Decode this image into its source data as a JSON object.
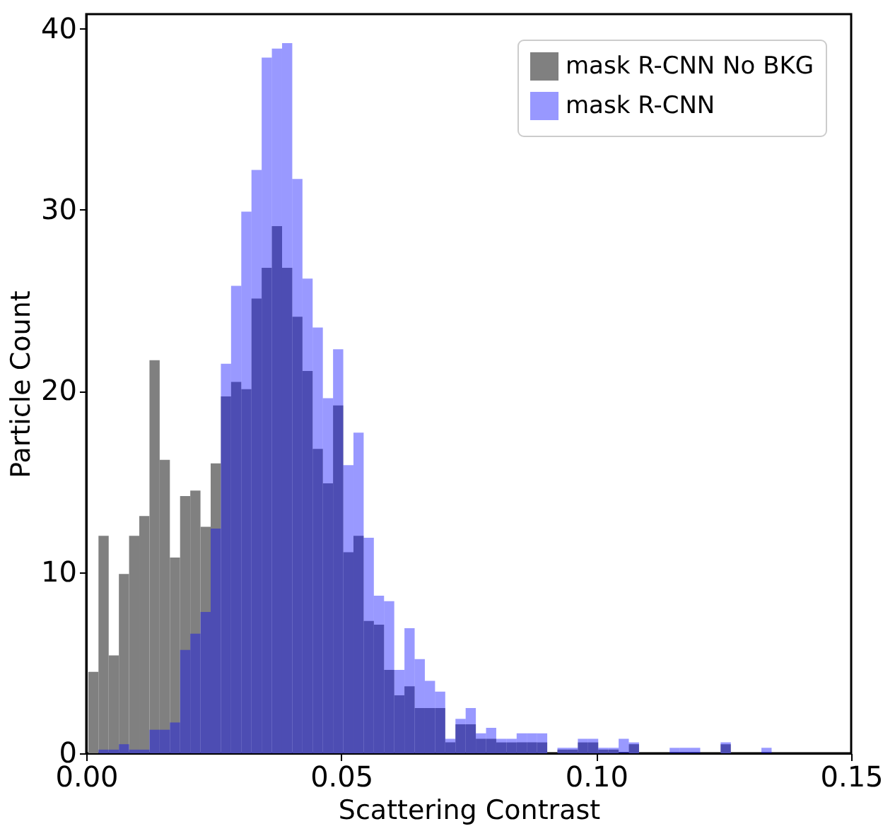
{
  "chart_data": {
    "type": "histogram",
    "xlabel": "Scattering Contrast",
    "ylabel": "Particle Count",
    "bins": [
      0.0004,
      0.0024,
      0.0044,
      0.0064,
      0.0084,
      0.0104,
      0.0124,
      0.0144,
      0.0164,
      0.0184,
      0.0204,
      0.0224,
      0.0244,
      0.0264,
      0.0284,
      0.0304,
      0.0324,
      0.0344,
      0.0364,
      0.0384,
      0.0404,
      0.0424,
      0.0444,
      0.0464,
      0.0484,
      0.0504,
      0.0524,
      0.0544,
      0.0564,
      0.0584,
      0.0604,
      0.0624,
      0.0644,
      0.0664,
      0.0684,
      0.0704,
      0.0724,
      0.0744,
      0.0764,
      0.0784,
      0.0804,
      0.0824,
      0.0844,
      0.0864,
      0.0884,
      0.0904,
      0.0924,
      0.0944,
      0.0964,
      0.0984,
      0.1004,
      0.1024,
      0.1044,
      0.1064,
      0.1084,
      0.1104,
      0.1124,
      0.1144,
      0.1164,
      0.1184,
      0.1204,
      0.1224,
      0.1244,
      0.1264,
      0.1284,
      0.1304,
      0.1324,
      0.1344
    ],
    "series": [
      {
        "name": "mask R-CNN No BKG",
        "color": "#808080",
        "values": [
          4.5,
          12.0,
          5.4,
          9.9,
          12.0,
          13.1,
          21.7,
          16.2,
          10.8,
          14.2,
          14.5,
          12.5,
          16.0,
          19.7,
          20.5,
          20.1,
          25.1,
          26.8,
          29.1,
          26.8,
          24.1,
          21.1,
          16.8,
          14.9,
          19.2,
          11.1,
          12.0,
          7.3,
          7.1,
          4.6,
          3.2,
          3.7,
          2.5,
          2.5,
          2.5,
          0.6,
          1.6,
          1.6,
          0.8,
          0.8,
          0.6,
          0.6,
          0.6,
          0.6,
          0.6,
          0,
          0.2,
          0.2,
          0.6,
          0.6,
          0.2,
          0.2,
          0,
          0.5,
          0,
          0,
          0,
          0,
          0,
          0,
          0,
          0,
          0.5,
          0,
          0,
          0,
          0
        ]
      },
      {
        "name": "mask R-CNN",
        "color": "#0000ff",
        "values": [
          0,
          0.2,
          0.2,
          0.5,
          0.2,
          0.2,
          1.3,
          1.3,
          1.7,
          5.7,
          6.6,
          7.8,
          12.4,
          21.5,
          25.8,
          29.9,
          32.2,
          38.4,
          38.9,
          39.2,
          31.7,
          26.2,
          23.5,
          19.6,
          22.3,
          15.9,
          17.7,
          11.9,
          8.7,
          8.4,
          4.6,
          6.9,
          5.2,
          4.0,
          3.4,
          0.8,
          1.9,
          2.5,
          1.1,
          1.4,
          0.8,
          0.8,
          1.1,
          1.1,
          1.1,
          0,
          0.3,
          0.3,
          0.8,
          0.8,
          0.3,
          0.3,
          0.8,
          0.6,
          0,
          0,
          0,
          0.3,
          0.3,
          0.3,
          0,
          0,
          0.6,
          0,
          0,
          0,
          0.3
        ]
      }
    ],
    "xlim": [
      0,
      0.15
    ],
    "xticks": [
      {
        "value": 0,
        "label": "0.00"
      },
      {
        "value": 0.05,
        "label": "0.05"
      },
      {
        "value": 0.1,
        "label": "0.10"
      },
      {
        "value": 0.15,
        "label": "0.15"
      }
    ],
    "ylim": [
      0,
      40.8
    ],
    "yticks": [
      0,
      10,
      20,
      30,
      40
    ],
    "legend": "top right",
    "grid": false
  }
}
